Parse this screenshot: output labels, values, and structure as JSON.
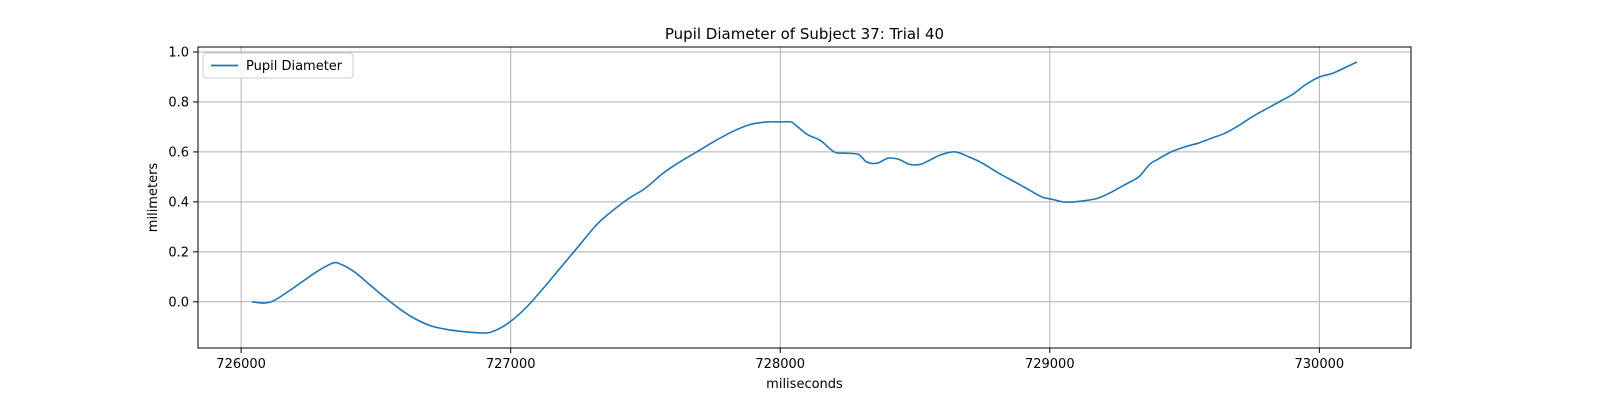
{
  "chart_data": {
    "type": "line",
    "title": "Pupil Diameter of Subject 37: Trial 40",
    "xlabel": "miliseconds",
    "ylabel": "milimeters",
    "xlim": [
      725840,
      730340
    ],
    "ylim": [
      -0.185,
      1.02
    ],
    "xticks": [
      726000,
      727000,
      728000,
      729000,
      730000
    ],
    "yticks": [
      0.0,
      0.2,
      0.4,
      0.6,
      0.8,
      1.0
    ],
    "xtick_labels": [
      "726000",
      "727000",
      "728000",
      "729000",
      "730000"
    ],
    "ytick_labels": [
      "0.0",
      "0.2",
      "0.4",
      "0.6",
      "0.8",
      "1.0"
    ],
    "grid": true,
    "legend_position": "top-left",
    "colors": {
      "series": "#1f77b4",
      "grid": "#b0b0b0"
    },
    "series": [
      {
        "name": "Pupil Diameter",
        "x": [
          726040,
          726090,
          726130,
          726200,
          726280,
          726340,
          726370,
          726420,
          726470,
          726530,
          726590,
          726640,
          726700,
          726760,
          726830,
          726900,
          726930,
          726970,
          727010,
          727060,
          727110,
          727180,
          727250,
          727320,
          727390,
          727440,
          727500,
          727560,
          727620,
          727690,
          727760,
          727830,
          727890,
          727950,
          728000,
          728040,
          728060,
          728100,
          728150,
          728200,
          728240,
          728290,
          728320,
          728360,
          728400,
          728440,
          728480,
          728520,
          728560,
          728600,
          728650,
          728700,
          728750,
          728810,
          728870,
          728920,
          728970,
          729010,
          729050,
          729090,
          729130,
          729180,
          729230,
          729280,
          729330,
          729370,
          729400,
          729450,
          729500,
          729550,
          729600,
          729650,
          729700,
          729750,
          729800,
          729850,
          729900,
          729950,
          730000,
          730050,
          730100,
          730140
        ],
        "values": [
          0.0,
          -0.005,
          0.01,
          0.06,
          0.12,
          0.155,
          0.15,
          0.12,
          0.075,
          0.02,
          -0.03,
          -0.065,
          -0.095,
          -0.11,
          -0.12,
          -0.125,
          -0.12,
          -0.1,
          -0.07,
          -0.02,
          0.04,
          0.13,
          0.22,
          0.31,
          0.375,
          0.415,
          0.455,
          0.51,
          0.555,
          0.6,
          0.645,
          0.685,
          0.71,
          0.72,
          0.72,
          0.72,
          0.705,
          0.67,
          0.645,
          0.6,
          0.595,
          0.59,
          0.56,
          0.555,
          0.575,
          0.57,
          0.55,
          0.55,
          0.57,
          0.59,
          0.6,
          0.58,
          0.555,
          0.515,
          0.48,
          0.45,
          0.42,
          0.41,
          0.4,
          0.4,
          0.405,
          0.415,
          0.44,
          0.47,
          0.5,
          0.55,
          0.57,
          0.6,
          0.62,
          0.635,
          0.655,
          0.675,
          0.705,
          0.74,
          0.77,
          0.8,
          0.83,
          0.87,
          0.9,
          0.915,
          0.94,
          0.96
        ]
      }
    ]
  }
}
